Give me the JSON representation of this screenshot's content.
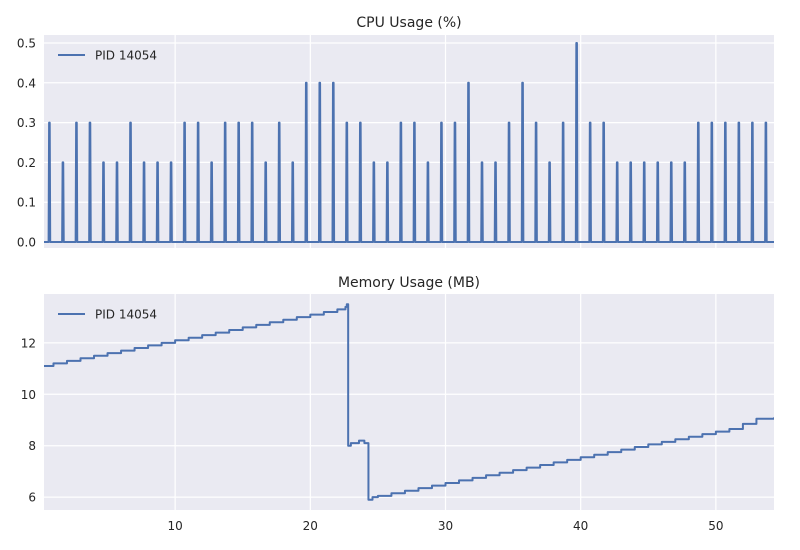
{
  "chart_data": [
    {
      "type": "line",
      "title": "CPU Usage (%)",
      "xlabel": "",
      "ylabel": "",
      "xlim": [
        0.3,
        54.3
      ],
      "ylim": [
        -0.015,
        0.52
      ],
      "yticks": [
        0.0,
        0.1,
        0.2,
        0.3,
        0.4,
        0.5
      ],
      "ytick_labels": [
        "0.0",
        "0.1",
        "0.2",
        "0.3",
        "0.4",
        "0.5"
      ],
      "grid": true,
      "legend": "upper-left",
      "x_tick_labels_shown": false,
      "series": [
        {
          "name": "PID 14054",
          "color": "#4c72b0",
          "spikes": [
            {
              "x": 0.7,
              "y": 0.3
            },
            {
              "x": 1.7,
              "y": 0.2
            },
            {
              "x": 2.7,
              "y": 0.3
            },
            {
              "x": 3.7,
              "y": 0.3
            },
            {
              "x": 4.7,
              "y": 0.2
            },
            {
              "x": 5.7,
              "y": 0.2
            },
            {
              "x": 6.7,
              "y": 0.3
            },
            {
              "x": 7.7,
              "y": 0.2
            },
            {
              "x": 8.7,
              "y": 0.2
            },
            {
              "x": 9.7,
              "y": 0.2
            },
            {
              "x": 10.7,
              "y": 0.3
            },
            {
              "x": 11.7,
              "y": 0.3
            },
            {
              "x": 12.7,
              "y": 0.2
            },
            {
              "x": 13.7,
              "y": 0.3
            },
            {
              "x": 14.7,
              "y": 0.3
            },
            {
              "x": 15.7,
              "y": 0.3
            },
            {
              "x": 16.7,
              "y": 0.2
            },
            {
              "x": 17.7,
              "y": 0.3
            },
            {
              "x": 18.7,
              "y": 0.2
            },
            {
              "x": 19.7,
              "y": 0.4
            },
            {
              "x": 20.7,
              "y": 0.4
            },
            {
              "x": 21.7,
              "y": 0.4
            },
            {
              "x": 22.7,
              "y": 0.3
            },
            {
              "x": 23.7,
              "y": 0.3
            },
            {
              "x": 24.7,
              "y": 0.2
            },
            {
              "x": 25.7,
              "y": 0.2
            },
            {
              "x": 26.7,
              "y": 0.3
            },
            {
              "x": 27.7,
              "y": 0.3
            },
            {
              "x": 28.7,
              "y": 0.2
            },
            {
              "x": 29.7,
              "y": 0.3
            },
            {
              "x": 30.7,
              "y": 0.3
            },
            {
              "x": 31.7,
              "y": 0.4
            },
            {
              "x": 32.7,
              "y": 0.2
            },
            {
              "x": 33.7,
              "y": 0.2
            },
            {
              "x": 34.7,
              "y": 0.3
            },
            {
              "x": 35.7,
              "y": 0.4
            },
            {
              "x": 36.7,
              "y": 0.3
            },
            {
              "x": 37.7,
              "y": 0.2
            },
            {
              "x": 38.7,
              "y": 0.3
            },
            {
              "x": 39.7,
              "y": 0.5
            },
            {
              "x": 40.7,
              "y": 0.3
            },
            {
              "x": 41.7,
              "y": 0.3
            },
            {
              "x": 42.7,
              "y": 0.2
            },
            {
              "x": 43.7,
              "y": 0.2
            },
            {
              "x": 44.7,
              "y": 0.2
            },
            {
              "x": 45.7,
              "y": 0.2
            },
            {
              "x": 46.7,
              "y": 0.2
            },
            {
              "x": 47.7,
              "y": 0.2
            },
            {
              "x": 48.7,
              "y": 0.3
            },
            {
              "x": 49.7,
              "y": 0.3
            },
            {
              "x": 50.7,
              "y": 0.3
            },
            {
              "x": 51.7,
              "y": 0.3
            },
            {
              "x": 52.7,
              "y": 0.3
            },
            {
              "x": 53.7,
              "y": 0.3
            }
          ]
        }
      ]
    },
    {
      "type": "line",
      "title": "Memory Usage (MB)",
      "xlabel": "",
      "ylabel": "",
      "xlim": [
        0.3,
        54.3
      ],
      "ylim": [
        5.5,
        13.9
      ],
      "yticks": [
        6,
        8,
        10,
        12
      ],
      "ytick_labels": [
        "6",
        "8",
        "10",
        "12"
      ],
      "xticks": [
        10,
        20,
        30,
        40,
        50
      ],
      "xtick_labels": [
        "10",
        "20",
        "30",
        "40",
        "50"
      ],
      "grid": true,
      "legend": "upper-left",
      "series": [
        {
          "name": "PID 14054",
          "color": "#4c72b0",
          "x": [
            0.3,
            1.0,
            2.0,
            3.0,
            4.0,
            5.0,
            6.0,
            7.0,
            8.0,
            9.0,
            10.0,
            11.0,
            12.0,
            13.0,
            14.0,
            15.0,
            16.0,
            17.0,
            18.0,
            19.0,
            20.0,
            21.0,
            22.0,
            22.6,
            22.7,
            22.8,
            23.0,
            23.6,
            24.0,
            24.3,
            24.6,
            25.0,
            26.0,
            27.0,
            28.0,
            29.0,
            30.0,
            31.0,
            32.0,
            33.0,
            34.0,
            35.0,
            36.0,
            37.0,
            38.0,
            39.0,
            40.0,
            41.0,
            42.0,
            43.0,
            44.0,
            45.0,
            46.0,
            47.0,
            48.0,
            49.0,
            50.0,
            51.0,
            52.0,
            53.0,
            54.3
          ],
          "y": [
            11.1,
            11.2,
            11.3,
            11.4,
            11.5,
            11.6,
            11.7,
            11.8,
            11.9,
            12.0,
            12.1,
            12.2,
            12.3,
            12.4,
            12.5,
            12.6,
            12.7,
            12.8,
            12.9,
            13.0,
            13.1,
            13.2,
            13.3,
            13.4,
            13.5,
            8.0,
            8.1,
            8.2,
            8.1,
            5.9,
            6.0,
            6.05,
            6.15,
            6.25,
            6.35,
            6.45,
            6.55,
            6.65,
            6.75,
            6.85,
            6.95,
            7.05,
            7.15,
            7.25,
            7.35,
            7.45,
            7.55,
            7.65,
            7.75,
            7.85,
            7.95,
            8.05,
            8.15,
            8.25,
            8.35,
            8.45,
            8.55,
            8.65,
            8.85,
            9.05,
            9.1
          ]
        }
      ]
    }
  ]
}
